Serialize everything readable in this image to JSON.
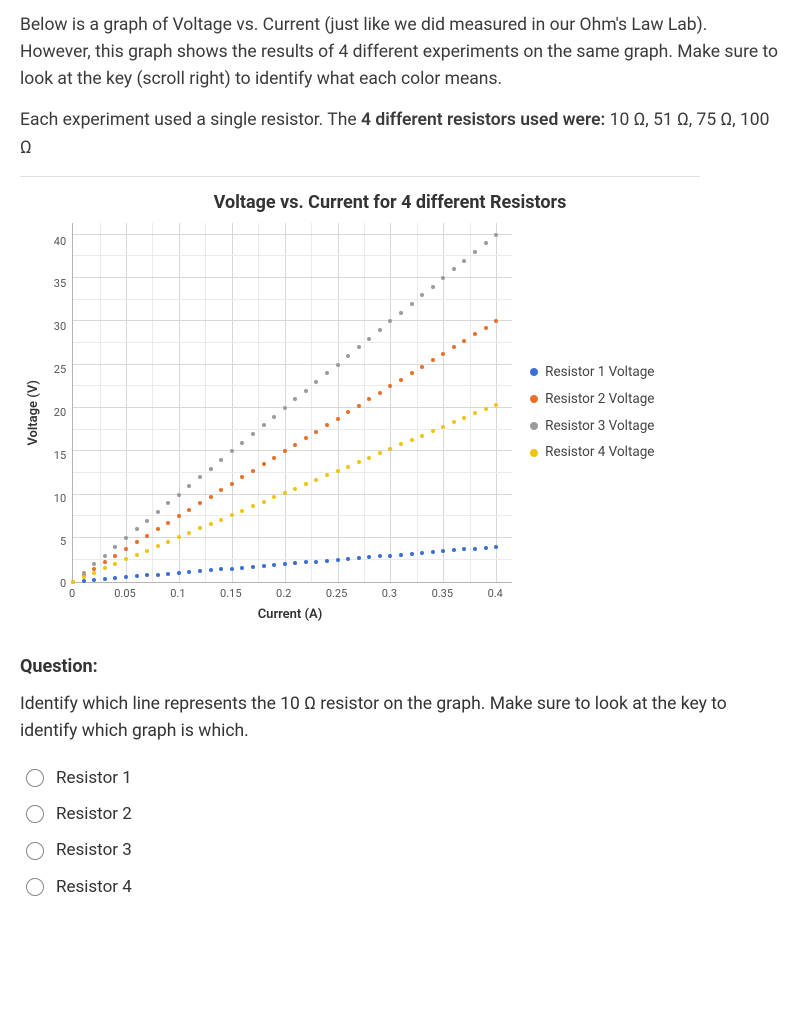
{
  "intro": {
    "p1": "Below is a graph of Voltage vs. Current (just like we did measured in our Ohm's Law Lab).  However, this graph shows the results of 4 different experiments on the same graph.  Make sure to look at the key (scroll right) to identify what each color means.",
    "p2a": "Each experiment used a single resistor.  The ",
    "p2b": "4 different resistors used were:",
    "p2c": "  10 Ω, 51 Ω, 75 Ω, 100 Ω"
  },
  "chart": {
    "type": "scatter",
    "title": "Voltage vs. Current for 4 different Resistors",
    "xlabel": "Current (A)",
    "ylabel": "Voltage (V)",
    "xlim": [
      0,
      0.416
    ],
    "ylim": [
      0,
      41.5
    ],
    "xtick_step": 0.05,
    "xtick_minor": 0.025,
    "ytick_step": 5,
    "ytick_minor": 2.5,
    "xticks": [
      0,
      0.05,
      0.1,
      0.15,
      0.2,
      0.25,
      0.3,
      0.35,
      0.4
    ],
    "yticks": [
      0,
      5,
      10,
      15,
      20,
      25,
      30,
      35,
      40
    ],
    "background_color": "#ffffff",
    "grid_major_color": "#d8d8d8",
    "grid_minor_color": "#eaeaea",
    "dot_size": 4,
    "n_points": 40,
    "x_max_data": 0.4,
    "series": [
      {
        "name": "Resistor 1 Voltage",
        "color": "#3b6fd6",
        "slope": 10
      },
      {
        "name": "Resistor 2 Voltage",
        "color": "#e8702a",
        "slope": 75
      },
      {
        "name": "Resistor 3 Voltage",
        "color": "#9b9b9b",
        "slope": 100
      },
      {
        "name": "Resistor 4 Voltage",
        "color": "#f1c40f",
        "slope": 51
      }
    ],
    "title_fontsize": 18,
    "label_fontsize": 13,
    "tick_fontsize": 11
  },
  "question": {
    "heading": "Question:",
    "text_a": "Identify which line represents the ",
    "text_bold": "10 Ω resistor",
    "text_b": " on the graph.  Make sure to look at the key to identify which graph is which.",
    "options": [
      "Resistor 1",
      "Resistor 2",
      "Resistor 3",
      "Resistor 4"
    ]
  }
}
